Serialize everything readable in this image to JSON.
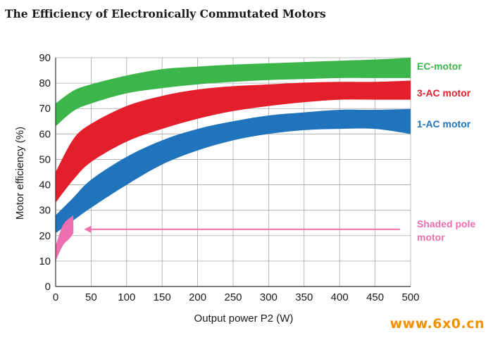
{
  "chart_data": {
    "type": "area",
    "title": "The Efficiency of Electronically Commutated Motors",
    "xlabel": "Output power P2 (W)",
    "ylabel": "Motor efficiency (%)",
    "xlim": [
      0,
      500
    ],
    "ylim": [
      0,
      90
    ],
    "x_ticks": [
      0,
      50,
      100,
      150,
      200,
      250,
      300,
      350,
      400,
      450,
      500
    ],
    "y_ticks": [
      0,
      10,
      20,
      30,
      40,
      50,
      60,
      70,
      80,
      90
    ],
    "grid": true,
    "legend": "right, labels beside each band",
    "series": [
      {
        "name": "EC-motor",
        "color": "#3cb54a",
        "x": [
          0,
          25,
          50,
          100,
          150,
          200,
          250,
          300,
          350,
          400,
          450,
          500
        ],
        "upper": [
          72,
          77,
          79.5,
          83,
          85.5,
          86.5,
          87.3,
          87.8,
          88.3,
          88.8,
          89.3,
          90
        ],
        "lower": [
          63,
          69,
          72,
          76,
          78,
          79.5,
          80.5,
          81.2,
          81.6,
          82,
          82,
          82
        ]
      },
      {
        "name": "3-AC motor",
        "color": "#e41f2c",
        "x": [
          0,
          25,
          50,
          100,
          150,
          200,
          250,
          300,
          350,
          400,
          450,
          500
        ],
        "upper": [
          45,
          58,
          64,
          71,
          75,
          77.5,
          78.8,
          79.5,
          80.2,
          80.5,
          80.5,
          81
        ],
        "lower": [
          33,
          42,
          49,
          57,
          62,
          66,
          69,
          71,
          72.5,
          73.5,
          73.5,
          73.5
        ]
      },
      {
        "name": "1-AC motor",
        "color": "#1f74bc",
        "x": [
          0,
          25,
          50,
          100,
          150,
          200,
          250,
          300,
          350,
          400,
          450,
          500
        ],
        "upper": [
          28,
          35,
          42,
          51,
          57.5,
          62,
          65,
          67.3,
          68.5,
          69.5,
          69.5,
          69.8
        ],
        "lower": [
          21,
          26,
          31,
          40,
          48,
          53.5,
          57.5,
          60,
          61.5,
          62,
          62,
          60
        ]
      },
      {
        "name": "Shaded pole motor",
        "color": "#ee6faf",
        "x": [
          0,
          10,
          20,
          25
        ],
        "upper": [
          16,
          24,
          27,
          28
        ],
        "lower": [
          10,
          16,
          19,
          21
        ]
      }
    ],
    "annotations": [
      {
        "text": "Shaded pole",
        "x_from": 485,
        "x_to": 40,
        "y": 22.5
      },
      {
        "text": "motor"
      }
    ]
  },
  "watermark": "www.6x0.cn"
}
